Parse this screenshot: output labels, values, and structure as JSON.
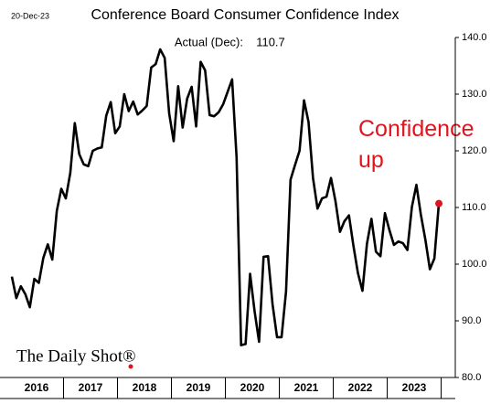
{
  "chart_data": {
    "type": "line",
    "title": "Conference Board Consumer Confidence Index",
    "date": "20-Dec-23",
    "subtitle": "Actual (Dec):",
    "annotation": "Confidence up",
    "source": "The Daily Shot®",
    "years": [
      "2016",
      "2017",
      "2018",
      "2019",
      "2020",
      "2021",
      "2022",
      "2023"
    ],
    "series": [
      {
        "name": "Consumer Confidence",
        "color": "#000000",
        "values": [
          97.8,
          94.0,
          96.1,
          94.7,
          92.4,
          97.4,
          96.7,
          101.1,
          103.5,
          100.8,
          109.4,
          113.3,
          111.6,
          116.1,
          124.9,
          119.4,
          117.6,
          117.3,
          120.0,
          120.4,
          120.6,
          126.2,
          128.6,
          123.1,
          124.3,
          130.0,
          127.0,
          128.7,
          126.4,
          127.1,
          127.9,
          134.7,
          135.3,
          137.9,
          136.4,
          126.6,
          121.7,
          131.4,
          124.1,
          129.2,
          131.3,
          124.3,
          135.7,
          134.2,
          126.3,
          126.1,
          126.8,
          128.2,
          130.4,
          132.6,
          118.8,
          85.7,
          85.9,
          98.3,
          91.7,
          86.3,
          101.3,
          101.4,
          92.9,
          87.1,
          87.1,
          95.2,
          114.9,
          117.5,
          120.0,
          128.9,
          125.1,
          115.2,
          109.8,
          111.6,
          111.9,
          115.2,
          111.1,
          105.7,
          107.6,
          108.6,
          103.2,
          98.4,
          95.3,
          103.6,
          108.0,
          102.2,
          101.4,
          109.0,
          106.0,
          103.4,
          104.0,
          103.7,
          102.5,
          110.1,
          114.0,
          108.7,
          104.3,
          99.1,
          101.0,
          110.7
        ]
      }
    ],
    "highlight_color": "#e0141e",
    "ylim": [
      80,
      140
    ],
    "yticks": [
      {
        "value": 80,
        "label": "80.0"
      },
      {
        "value": 90,
        "label": "90.0"
      },
      {
        "value": 100,
        "label": "100.0"
      },
      {
        "value": 110,
        "label": "110.0"
      },
      {
        "value": 120,
        "label": "120.0"
      },
      {
        "value": 130,
        "label": "130.0"
      },
      {
        "value": 140,
        "label": "140.0"
      }
    ],
    "grid": false
  }
}
